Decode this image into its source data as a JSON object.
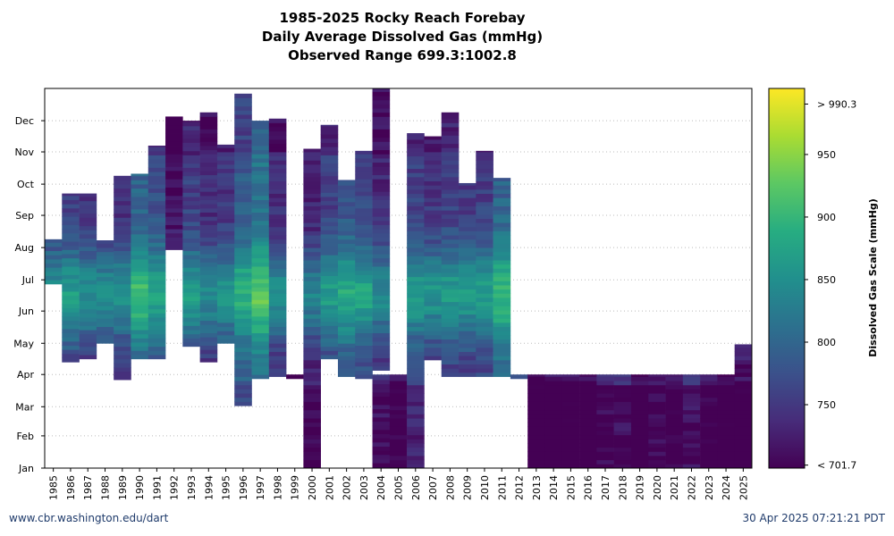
{
  "header": {
    "title": "1985-2025 Rocky Reach Forebay",
    "subtitle": "Daily Average Dissolved Gas (mmHg)",
    "range_note": "Observed Range 699.3:1002.8"
  },
  "footer": {
    "left": "www.cbr.washington.edu/dart",
    "right": "30 Apr 2025 07:21:21 PDT"
  },
  "colorbar": {
    "label": "Dissolved Gas Scale (mmHg)",
    "min": 699.3,
    "max": 1002.8,
    "ticks": [
      {
        "value": 990.3,
        "label": "> 990.3"
      },
      {
        "value": 950,
        "label": "950"
      },
      {
        "value": 900,
        "label": "900"
      },
      {
        "value": 850,
        "label": "850"
      },
      {
        "value": 800,
        "label": "800"
      },
      {
        "value": 750,
        "label": "750"
      },
      {
        "value": 701.7,
        "label": "< 701.7"
      }
    ],
    "colors": [
      "#440154",
      "#472c7a",
      "#3b518b",
      "#2c718e",
      "#21908d",
      "#27ad81",
      "#5cc863",
      "#aadc32",
      "#fde725"
    ]
  },
  "chart_data": {
    "type": "heatmap",
    "x_label": "",
    "y_label": "",
    "y_ticks": [
      "Jan",
      "Feb",
      "Mar",
      "Apr",
      "May",
      "Jun",
      "Jul",
      "Aug",
      "Sep",
      "Oct",
      "Nov",
      "Dec"
    ],
    "grid": "horizontal dotted",
    "years": [
      {
        "year": "1985",
        "start": "Jun 27",
        "end": "Aug 8",
        "mean": 800
      },
      {
        "year": "1986",
        "start": "Apr 13",
        "end": "Sep 21",
        "mean": 810
      },
      {
        "year": "1987",
        "start": "Apr 16",
        "end": "Sep 21",
        "mean": 795
      },
      {
        "year": "1988",
        "start": "May 1",
        "end": "Aug 7",
        "mean": 790
      },
      {
        "year": "1989",
        "start": "Mar 27",
        "end": "Oct 8",
        "mean": 795
      },
      {
        "year": "1990",
        "start": "Apr 16",
        "end": "Oct 10",
        "mean": 850
      },
      {
        "year": "1991",
        "start": "Apr 16",
        "end": "Nov 6",
        "mean": 825
      },
      {
        "year": "1992",
        "start": "Jul 30",
        "end": "Dec 4",
        "mean": 760
      },
      {
        "year": "1993",
        "start": "Apr 28",
        "end": "Nov 30",
        "mean": 810
      },
      {
        "year": "1994",
        "start": "Apr 13",
        "end": "Dec 8",
        "mean": 790
      },
      {
        "year": "1995",
        "start": "May 1",
        "end": "Nov 7",
        "mean": 800
      },
      {
        "year": "1996",
        "start": "Mar 2",
        "end": "Dec 26",
        "mean": 840
      },
      {
        "year": "1997",
        "start": "Mar 28",
        "end": "Nov 30",
        "mean": 870
      },
      {
        "year": "1998",
        "start": "Mar 30",
        "end": "Dec 2",
        "mean": 790
      },
      {
        "year": "1999",
        "start": "Mar 28",
        "end": "Mar 31",
        "mean": 730
      },
      {
        "year": "2000",
        "start": "Jan 1",
        "end": "Nov 3",
        "mean": 780
      },
      {
        "year": "2001",
        "start": "Apr 16",
        "end": "Nov 26",
        "mean": 810
      },
      {
        "year": "2002",
        "start": "Mar 30",
        "end": "Oct 4",
        "mean": 830
      },
      {
        "year": "2003",
        "start": "Mar 28",
        "end": "Nov 1",
        "mean": 820
      },
      {
        "year": "2004",
        "start": "Apr 5",
        "end": "Mar 31",
        "mean": 790
      },
      {
        "year": "2005",
        "start": "Jan 1",
        "end": "Mar 31",
        "mean": 770
      },
      {
        "year": "2006",
        "start": "Jan 1",
        "end": "Nov 18",
        "mean": 810
      },
      {
        "year": "2007",
        "start": "Apr 15",
        "end": "Nov 15",
        "mean": 800
      },
      {
        "year": "2008",
        "start": "Mar 30",
        "end": "Dec 8",
        "mean": 810
      },
      {
        "year": "2009",
        "start": "Mar 30",
        "end": "Oct 1",
        "mean": 805
      },
      {
        "year": "2010",
        "start": "Mar 30",
        "end": "Nov 1",
        "mean": 810
      },
      {
        "year": "2011",
        "start": "Mar 30",
        "end": "Oct 6",
        "mean": 850
      },
      {
        "year": "2012",
        "start": "Mar 28",
        "end": "Mar 31",
        "mean": 830
      },
      {
        "year": "2013",
        "start": "Jan 1",
        "end": "Mar 31",
        "mean": 760
      },
      {
        "year": "2014",
        "start": "Jan 1",
        "end": "Mar 31",
        "mean": 760
      },
      {
        "year": "2015",
        "start": "Jan 1",
        "end": "Mar 31",
        "mean": 760
      },
      {
        "year": "2016",
        "start": "Jan 1",
        "end": "Mar 31",
        "mean": 760
      },
      {
        "year": "2017",
        "start": "Jan 1",
        "end": "Mar 31",
        "mean": 780
      },
      {
        "year": "2018",
        "start": "Jan 1",
        "end": "Mar 31",
        "mean": 790
      },
      {
        "year": "2019",
        "start": "Jan 1",
        "end": "Mar 31",
        "mean": 760
      },
      {
        "year": "2020",
        "start": "Jan 1",
        "end": "Mar 31",
        "mean": 780
      },
      {
        "year": "2021",
        "start": "Jan 1",
        "end": "Mar 31",
        "mean": 770
      },
      {
        "year": "2022",
        "start": "Jan 1",
        "end": "Mar 31",
        "mean": 790
      },
      {
        "year": "2023",
        "start": "Jan 1",
        "end": "Mar 31",
        "mean": 770
      },
      {
        "year": "2024",
        "start": "Jan 1",
        "end": "Mar 31",
        "mean": 760
      },
      {
        "year": "2025",
        "start": "Jan 1",
        "end": "Apr 29",
        "mean": 760
      }
    ]
  }
}
